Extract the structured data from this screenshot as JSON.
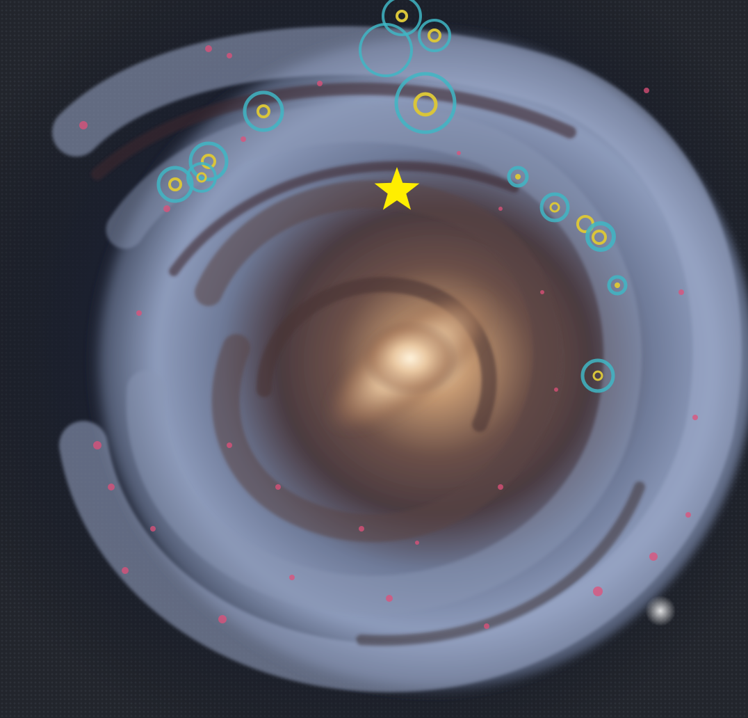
{
  "image": {
    "subject": "galaxy-artwork",
    "marker_icon": "star-icon",
    "ring_icon": "circle-marker-icon"
  },
  "colors": {
    "frame": "#22252c",
    "space": "#0e1220",
    "arm_blue": "#aab8d8",
    "hii_pink": "#e0507a",
    "core": "#e8c9a0",
    "dust": "#3a2a28",
    "ring": "#3fb6c4",
    "ring_center": "#d9c53a",
    "star": "#ffee00"
  }
}
